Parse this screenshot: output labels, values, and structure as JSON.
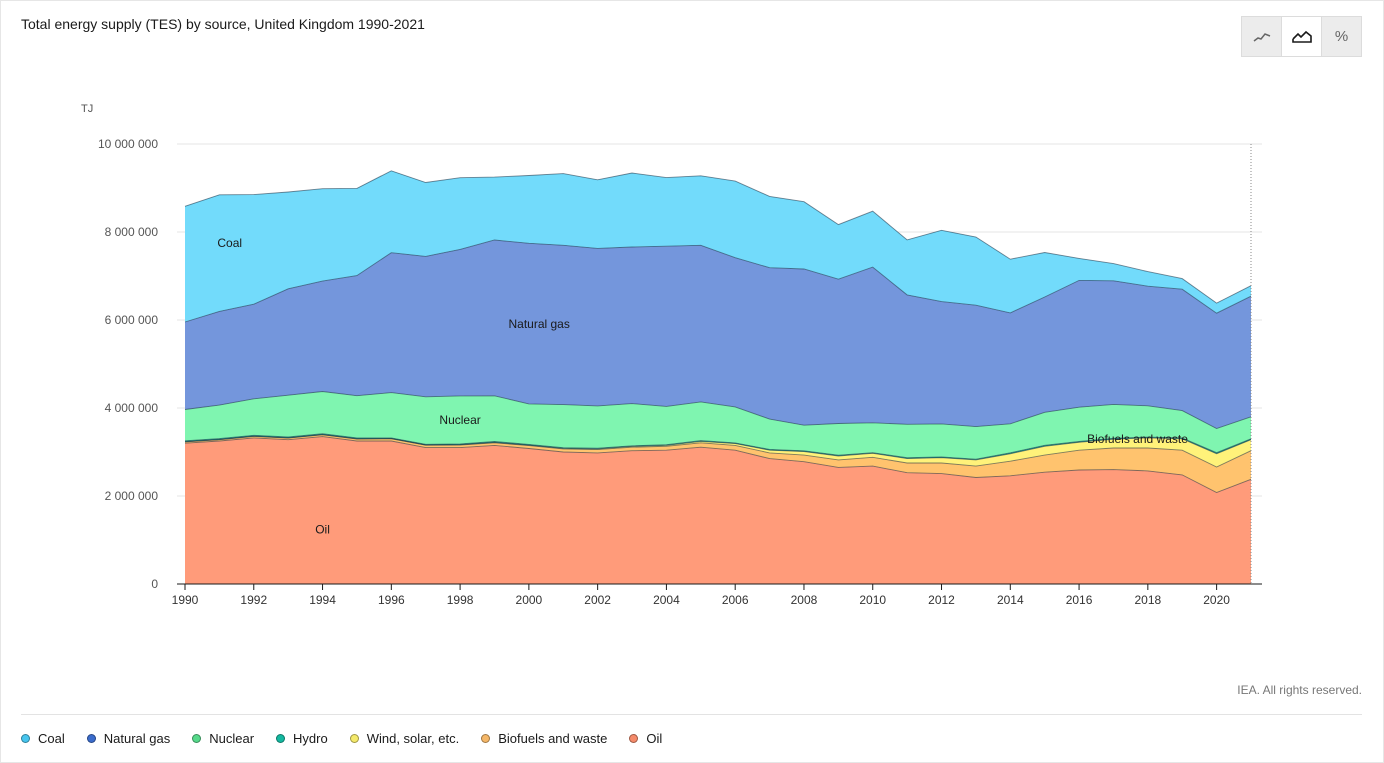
{
  "header": {
    "title": "Total energy supply (TES) by source, United Kingdom 1990-2021"
  },
  "toggles": [
    {
      "name": "line-view-icon",
      "glyph": "⟋"
    },
    {
      "name": "area-view-icon",
      "glyph": "⛰"
    },
    {
      "name": "percent-view-icon",
      "glyph": "%"
    }
  ],
  "footer": {
    "credit": "IEA. All rights reserved."
  },
  "chart_data": {
    "type": "area",
    "stacked": true,
    "title": "Total energy supply (TES) by source, United Kingdom 1990-2021",
    "ylabel": "TJ",
    "xlabel": "",
    "ylim": [
      0,
      10000000
    ],
    "yticks": [
      0,
      2000000,
      4000000,
      6000000,
      8000000,
      10000000
    ],
    "ytick_labels": [
      "0",
      "2 000 000",
      "4 000 000",
      "6 000 000",
      "8 000 000",
      "10 000 000"
    ],
    "xticks": [
      1990,
      1992,
      1994,
      1996,
      1998,
      2000,
      2002,
      2004,
      2006,
      2008,
      2010,
      2012,
      2014,
      2016,
      2018,
      2020
    ],
    "xtick_labels": [
      "1990",
      "1992",
      "1994",
      "1996",
      "1998",
      "2000",
      "2002",
      "2004",
      "2006",
      "2008",
      "2010",
      "2012",
      "2014",
      "2016",
      "2018",
      "2020"
    ],
    "x": [
      1990,
      1991,
      1992,
      1993,
      1994,
      1995,
      1996,
      1997,
      1998,
      1999,
      2000,
      2001,
      2002,
      2003,
      2004,
      2005,
      2006,
      2007,
      2008,
      2009,
      2010,
      2011,
      2012,
      2013,
      2014,
      2015,
      2016,
      2017,
      2018,
      2019,
      2020,
      2021
    ],
    "series": [
      {
        "name": "Oil",
        "color": "#ff9b7a",
        "label": "Oil",
        "values": [
          3200000,
          3250000,
          3320000,
          3280000,
          3350000,
          3250000,
          3250000,
          3100000,
          3100000,
          3150000,
          3080000,
          3000000,
          2980000,
          3030000,
          3040000,
          3110000,
          3040000,
          2850000,
          2780000,
          2650000,
          2680000,
          2530000,
          2510000,
          2420000,
          2460000,
          2540000,
          2590000,
          2600000,
          2570000,
          2480000,
          2080000,
          2380000
        ]
      },
      {
        "name": "Biofuels and waste",
        "color": "#ffc36e",
        "label": "Biofuels and waste",
        "values": [
          30000,
          30000,
          35000,
          35000,
          40000,
          45000,
          50000,
          55000,
          60000,
          60000,
          65000,
          70000,
          75000,
          80000,
          90000,
          100000,
          110000,
          130000,
          150000,
          170000,
          200000,
          220000,
          240000,
          260000,
          330000,
          390000,
          450000,
          490000,
          520000,
          560000,
          580000,
          650000
        ]
      },
      {
        "name": "Wind, solar, etc.",
        "color": "#fff27a",
        "label": "",
        "values": [
          5000,
          5000,
          5000,
          5000,
          5000,
          5000,
          5000,
          5000,
          5000,
          8000,
          10000,
          12000,
          15000,
          18000,
          20000,
          30000,
          40000,
          60000,
          80000,
          90000,
          90000,
          100000,
          120000,
          140000,
          170000,
          200000,
          180000,
          200000,
          230000,
          260000,
          300000,
          250000
        ]
      },
      {
        "name": "Hydro",
        "color": "#14b8a0",
        "label": "",
        "values": [
          20000,
          20000,
          20000,
          20000,
          20000,
          20000,
          15000,
          15000,
          20000,
          20000,
          18000,
          15000,
          17000,
          12000,
          17000,
          18000,
          16000,
          18000,
          18000,
          18000,
          13000,
          20000,
          19000,
          17000,
          21000,
          23000,
          19000,
          21000,
          19000,
          21000,
          24000,
          20000
        ]
      },
      {
        "name": "Nuclear",
        "color": "#7ff5b0",
        "label": "Nuclear",
        "values": [
          710000,
          760000,
          830000,
          950000,
          960000,
          960000,
          1030000,
          1080000,
          1090000,
          1040000,
          920000,
          980000,
          960000,
          960000,
          870000,
          880000,
          820000,
          690000,
          580000,
          720000,
          680000,
          760000,
          750000,
          740000,
          660000,
          750000,
          780000,
          770000,
          710000,
          620000,
          550000,
          500000
        ]
      },
      {
        "name": "Natural gas",
        "color": "#7496dc",
        "label": "Natural gas",
        "values": [
          1990000,
          2130000,
          2150000,
          2420000,
          2510000,
          2730000,
          3180000,
          3190000,
          3330000,
          3540000,
          3650000,
          3620000,
          3580000,
          3560000,
          3640000,
          3560000,
          3390000,
          3440000,
          3550000,
          3280000,
          3540000,
          2940000,
          2780000,
          2760000,
          2520000,
          2620000,
          2880000,
          2810000,
          2720000,
          2760000,
          2620000,
          2740000
        ]
      },
      {
        "name": "Coal",
        "color": "#72dbfb",
        "label": "Coal",
        "values": [
          2630000,
          2650000,
          2490000,
          2200000,
          2100000,
          1980000,
          1860000,
          1680000,
          1630000,
          1430000,
          1540000,
          1630000,
          1560000,
          1680000,
          1560000,
          1580000,
          1740000,
          1620000,
          1530000,
          1240000,
          1270000,
          1250000,
          1620000,
          1550000,
          1220000,
          1010000,
          500000,
          390000,
          330000,
          240000,
          230000,
          240000
        ]
      }
    ],
    "legend": [
      {
        "name": "Coal",
        "color": "#47c5ee"
      },
      {
        "name": "Natural gas",
        "color": "#3b6ccc"
      },
      {
        "name": "Nuclear",
        "color": "#56d98a"
      },
      {
        "name": "Hydro",
        "color": "#14b8a0"
      },
      {
        "name": "Wind, solar, etc.",
        "color": "#f4e96a"
      },
      {
        "name": "Biofuels and waste",
        "color": "#f5b768"
      },
      {
        "name": "Oil",
        "color": "#f58a6a"
      }
    ],
    "legend_position": "bottom-left",
    "grid": true
  }
}
